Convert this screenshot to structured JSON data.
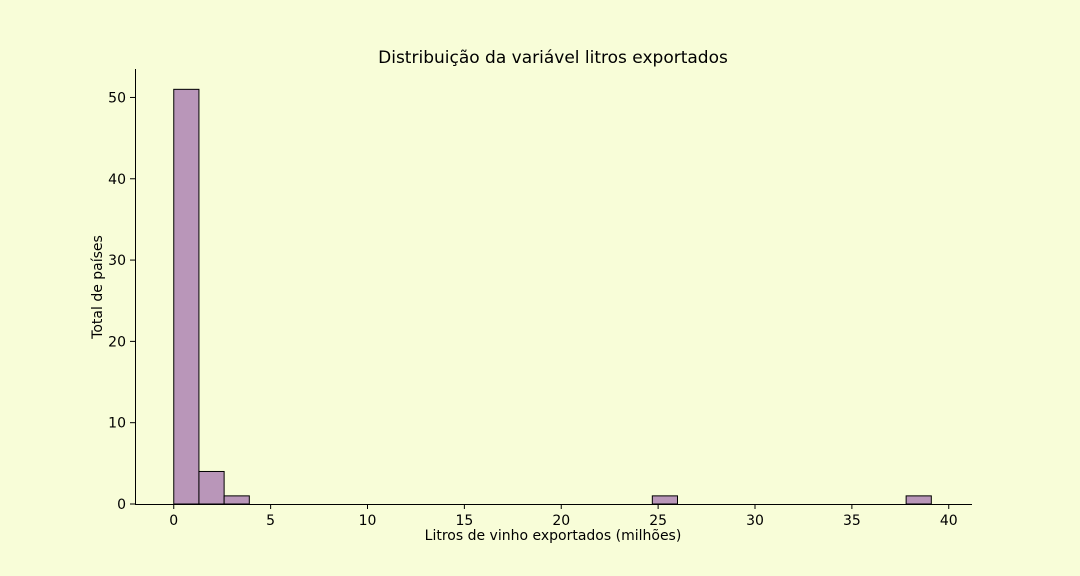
{
  "chart_data": {
    "type": "bar",
    "title": "Distribuição da variável litros exportados",
    "xlabel": "Litros de vinho exportados (milhões)",
    "ylabel": "Total de países",
    "xlim": [
      -2.0,
      41.2
    ],
    "ylim": [
      0,
      53.5
    ],
    "xticks": [
      0,
      5,
      10,
      15,
      20,
      25,
      30,
      35,
      40
    ],
    "yticks": [
      0,
      10,
      20,
      30,
      40,
      50
    ],
    "bin_width": 1.3,
    "bars": [
      {
        "x0": 0.0,
        "x1": 1.3,
        "count": 51
      },
      {
        "x0": 1.3,
        "x1": 2.6,
        "count": 4
      },
      {
        "x0": 2.6,
        "x1": 3.9,
        "count": 1
      },
      {
        "x0": 24.7,
        "x1": 26.0,
        "count": 1
      },
      {
        "x0": 37.8,
        "x1": 39.1,
        "count": 1
      }
    ],
    "bar_color": "#b996b9",
    "edge_color": "#000000",
    "grid": false
  }
}
